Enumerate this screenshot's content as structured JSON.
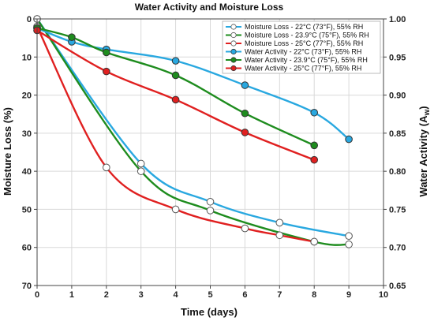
{
  "chart_data": {
    "type": "line",
    "title": "Water Activity and Moisture Loss",
    "xlabel": "Time (days)",
    "ylabel_left": "Moisture Loss (%)",
    "ylabel_right_main": "Water Activity (A",
    "ylabel_right_sub": "w",
    "ylabel_right_close": ")",
    "x_ticks": [
      "0",
      "1",
      "2",
      "3",
      "4",
      "5",
      "6",
      "7",
      "8",
      "9",
      "10"
    ],
    "y_left_ticks": [
      "0",
      "10",
      "20",
      "30",
      "40",
      "50",
      "60",
      "70"
    ],
    "y_right_ticks": [
      "1.00",
      "0.95",
      "0.90",
      "0.85",
      "0.80",
      "0.75",
      "0.70",
      "0.65"
    ],
    "xlim": [
      0,
      10
    ],
    "ylim_left": [
      0,
      70
    ],
    "ylim_left_inverted": true,
    "ylim_right": [
      0.65,
      1.0
    ],
    "grid": true,
    "legend_position": "top-right",
    "series": [
      {
        "name": "Moisture Loss - 22°C (73°F), 55% RH",
        "axis": "left",
        "color": "#29a8e0",
        "marker": "open",
        "x": [
          0,
          3,
          5,
          7,
          9
        ],
        "y": [
          0,
          38,
          48,
          53.5,
          57
        ]
      },
      {
        "name": "Moisture Loss - 23.9°C (75°F), 55% RH",
        "axis": "left",
        "color": "#1e8c1e",
        "marker": "open",
        "x": [
          0,
          3,
          5,
          8,
          9
        ],
        "y": [
          0,
          40,
          50.3,
          58.5,
          59.2
        ]
      },
      {
        "name": "Moisture Loss - 25°C (77°F), 55% RH",
        "axis": "left",
        "color": "#e02020",
        "marker": "open",
        "x": [
          0,
          2,
          4,
          6,
          7,
          8
        ],
        "y": [
          2,
          39,
          50,
          55,
          56.8,
          58.5
        ]
      },
      {
        "name": "Water Activity - 22°C (73°F), 55% RH",
        "axis": "right",
        "color": "#29a8e0",
        "marker": "filled",
        "x": [
          0,
          1,
          2,
          4,
          6,
          8,
          9
        ],
        "y": [
          0.988,
          0.97,
          0.96,
          0.945,
          0.913,
          0.877,
          0.842
        ]
      },
      {
        "name": "Water Activity - 23.9°C (75°F), 55% RH",
        "axis": "right",
        "color": "#1e8c1e",
        "marker": "filled",
        "x": [
          0,
          1,
          2,
          4,
          6,
          8
        ],
        "y": [
          0.988,
          0.976,
          0.956,
          0.926,
          0.876,
          0.834
        ]
      },
      {
        "name": "Water Activity - 25°C (77°F), 55% RH",
        "axis": "right",
        "color": "#e02020",
        "marker": "filled",
        "x": [
          0,
          2,
          4,
          6,
          8
        ],
        "y": [
          0.985,
          0.931,
          0.894,
          0.851,
          0.815
        ]
      }
    ]
  }
}
